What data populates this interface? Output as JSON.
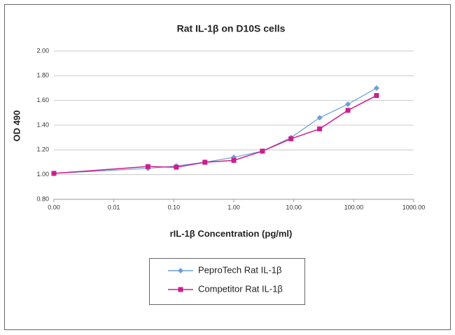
{
  "chart_data": {
    "type": "line",
    "title": "Rat IL-1β on D10S cells",
    "xlabel": "rIL-1β Concentration (pg/ml)",
    "ylabel": "OD 490",
    "xscale": "log",
    "grid": true,
    "x": [
      0.001,
      0.037,
      0.11,
      0.33,
      1,
      3,
      9,
      27,
      80,
      240
    ],
    "series": [
      {
        "name": "PeproTech Rat IL-1β",
        "color": "#6a9fd8",
        "marker": "diamond",
        "values": [
          1.01,
          1.05,
          1.07,
          1.1,
          1.14,
          1.19,
          1.3,
          1.46,
          1.57,
          1.7
        ]
      },
      {
        "name": "Competitor Rat IL-1β",
        "color": "#cc1e8f",
        "marker": "square",
        "values": [
          1.01,
          1.065,
          1.06,
          1.1,
          1.115,
          1.19,
          1.29,
          1.37,
          1.52,
          1.64
        ]
      }
    ],
    "xlim": [
      0.001,
      1000
    ],
    "xticks": [
      {
        "value": 0.001,
        "label": "0.00"
      },
      {
        "value": 0.01,
        "label": "0.01"
      },
      {
        "value": 0.1,
        "label": "0.10"
      },
      {
        "value": 1,
        "label": "1.00"
      },
      {
        "value": 10,
        "label": "10.00"
      },
      {
        "value": 100,
        "label": "100.00"
      },
      {
        "value": 1000,
        "label": "1000.00"
      }
    ],
    "ylim": [
      0.8,
      2.0
    ],
    "yticks": [
      {
        "value": 0.8,
        "label": "0.80"
      },
      {
        "value": 1.0,
        "label": "1.00"
      },
      {
        "value": 1.2,
        "label": "1.20"
      },
      {
        "value": 1.4,
        "label": "1.40"
      },
      {
        "value": 1.6,
        "label": "1.60"
      },
      {
        "value": 1.8,
        "label": "1.80"
      },
      {
        "value": 2.0,
        "label": "2.00"
      }
    ]
  }
}
